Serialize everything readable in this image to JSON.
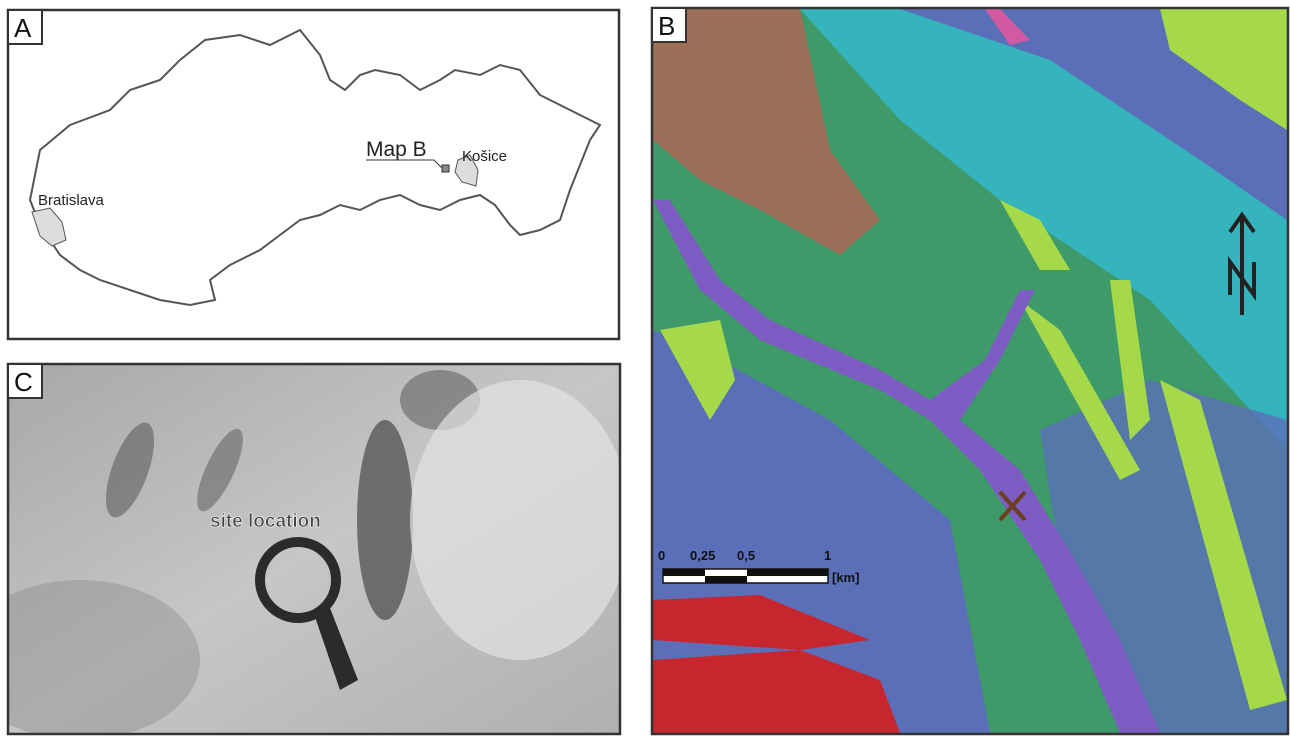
{
  "panel_a": {
    "label": "A",
    "map_b_label": "Map B",
    "cities": [
      "Bratislava",
      "Košice"
    ]
  },
  "panel_b": {
    "label": "B",
    "scale_bar": {
      "ticks": [
        "0",
        "0,25",
        "0,5",
        "1"
      ],
      "unit": "[km]"
    }
  },
  "panel_c": {
    "label": "C",
    "annotation": "site location"
  }
}
